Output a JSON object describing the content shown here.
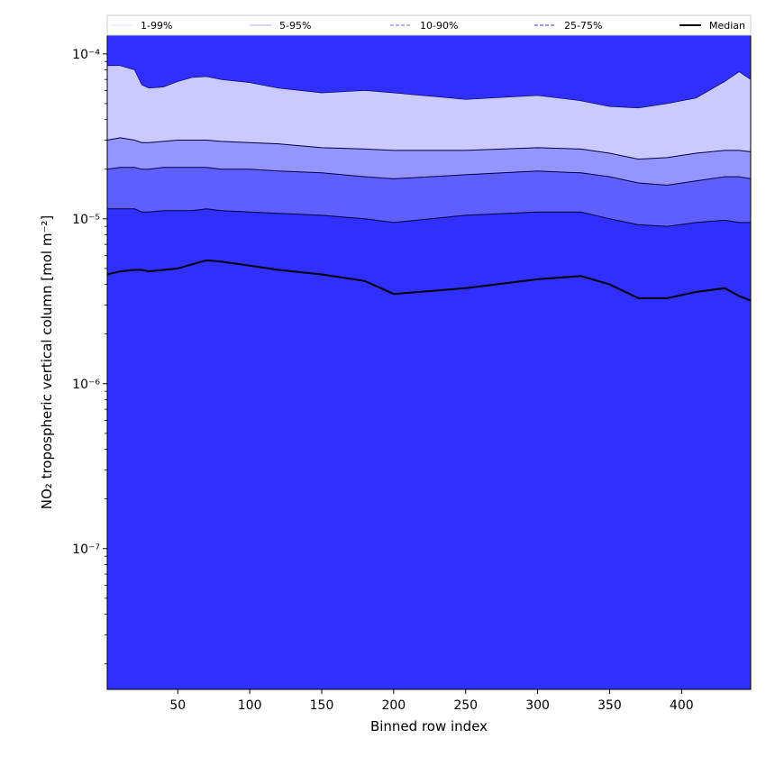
{
  "chart_data": {
    "type": "area",
    "xlabel": "Binned row index",
    "ylabel": "NO₂ tropospheric vertical column [mol m⁻²]",
    "xlim": [
      1,
      448
    ],
    "ylim": [
      1.4e-08,
      0.00013
    ],
    "yscale": "log",
    "x_ticks": [
      50,
      100,
      150,
      200,
      250,
      300,
      350,
      400
    ],
    "y_ticks": [
      {
        "value": 1e-07,
        "label": "10⁻⁷"
      },
      {
        "value": 1e-06,
        "label": "10⁻⁶"
      },
      {
        "value": 1e-05,
        "label": "10⁻⁵"
      },
      {
        "value": 0.0001,
        "label": "10⁻⁴"
      }
    ],
    "legend_position": "top",
    "legend": [
      {
        "label": "1-99%",
        "color": "#e6e6ff",
        "style": "solid"
      },
      {
        "label": "5-95%",
        "color": "#b8b8ff",
        "style": "solid"
      },
      {
        "label": "10-90%",
        "color": "#8a8aff",
        "style": "dashed"
      },
      {
        "label": "25-75%",
        "color": "#5b5bff",
        "style": "dashed"
      },
      {
        "label": "Median",
        "color": "#000000",
        "style": "solid"
      }
    ],
    "x": [
      1,
      10,
      20,
      25,
      30,
      40,
      50,
      60,
      70,
      80,
      100,
      120,
      150,
      180,
      200,
      250,
      300,
      330,
      350,
      370,
      390,
      410,
      430,
      440,
      448
    ],
    "series": [
      {
        "name": "99%",
        "values": [
          8.5e-05,
          8.5e-05,
          8e-05,
          6.5e-05,
          6.2e-05,
          6.3e-05,
          6.8e-05,
          7.2e-05,
          7.3e-05,
          7e-05,
          6.7e-05,
          6.2e-05,
          5.8e-05,
          6e-05,
          5.8e-05,
          5.3e-05,
          5.6e-05,
          5.2e-05,
          4.8e-05,
          4.7e-05,
          5e-05,
          5.4e-05,
          6.8e-05,
          7.8e-05,
          7e-05
        ]
      },
      {
        "name": "95%",
        "values": [
          3e-05,
          3.1e-05,
          3e-05,
          2.9e-05,
          2.9e-05,
          2.95e-05,
          3e-05,
          3e-05,
          3e-05,
          2.95e-05,
          2.9e-05,
          2.85e-05,
          2.7e-05,
          2.65e-05,
          2.6e-05,
          2.6e-05,
          2.7e-05,
          2.65e-05,
          2.5e-05,
          2.3e-05,
          2.35e-05,
          2.5e-05,
          2.6e-05,
          2.6e-05,
          2.55e-05
        ]
      },
      {
        "name": "90%",
        "values": [
          2e-05,
          2.05e-05,
          2.05e-05,
          2e-05,
          2e-05,
          2.05e-05,
          2.05e-05,
          2.05e-05,
          2.05e-05,
          2e-05,
          2e-05,
          1.95e-05,
          1.9e-05,
          1.8e-05,
          1.75e-05,
          1.85e-05,
          1.95e-05,
          1.9e-05,
          1.8e-05,
          1.65e-05,
          1.6e-05,
          1.7e-05,
          1.8e-05,
          1.8e-05,
          1.75e-05
        ]
      },
      {
        "name": "75%",
        "values": [
          1.15e-05,
          1.15e-05,
          1.15e-05,
          1.1e-05,
          1.1e-05,
          1.12e-05,
          1.12e-05,
          1.12e-05,
          1.15e-05,
          1.12e-05,
          1.1e-05,
          1.08e-05,
          1.05e-05,
          1e-05,
          9.5e-06,
          1.05e-05,
          1.1e-05,
          1.1e-05,
          1e-05,
          9.2e-06,
          9e-06,
          9.5e-06,
          9.8e-06,
          9.5e-06,
          9.5e-06
        ]
      },
      {
        "name": "Median",
        "values": [
          4.6e-06,
          4.8e-06,
          4.9e-06,
          4.9e-06,
          4.8e-06,
          4.9e-06,
          5e-06,
          5.3e-06,
          5.6e-06,
          5.5e-06,
          5.2e-06,
          4.9e-06,
          4.6e-06,
          4.2e-06,
          3.5e-06,
          3.8e-06,
          4.3e-06,
          4.5e-06,
          4e-06,
          3.3e-06,
          3.3e-06,
          3.6e-06,
          3.8e-06,
          3.4e-06,
          3.2e-06
        ]
      }
    ]
  }
}
